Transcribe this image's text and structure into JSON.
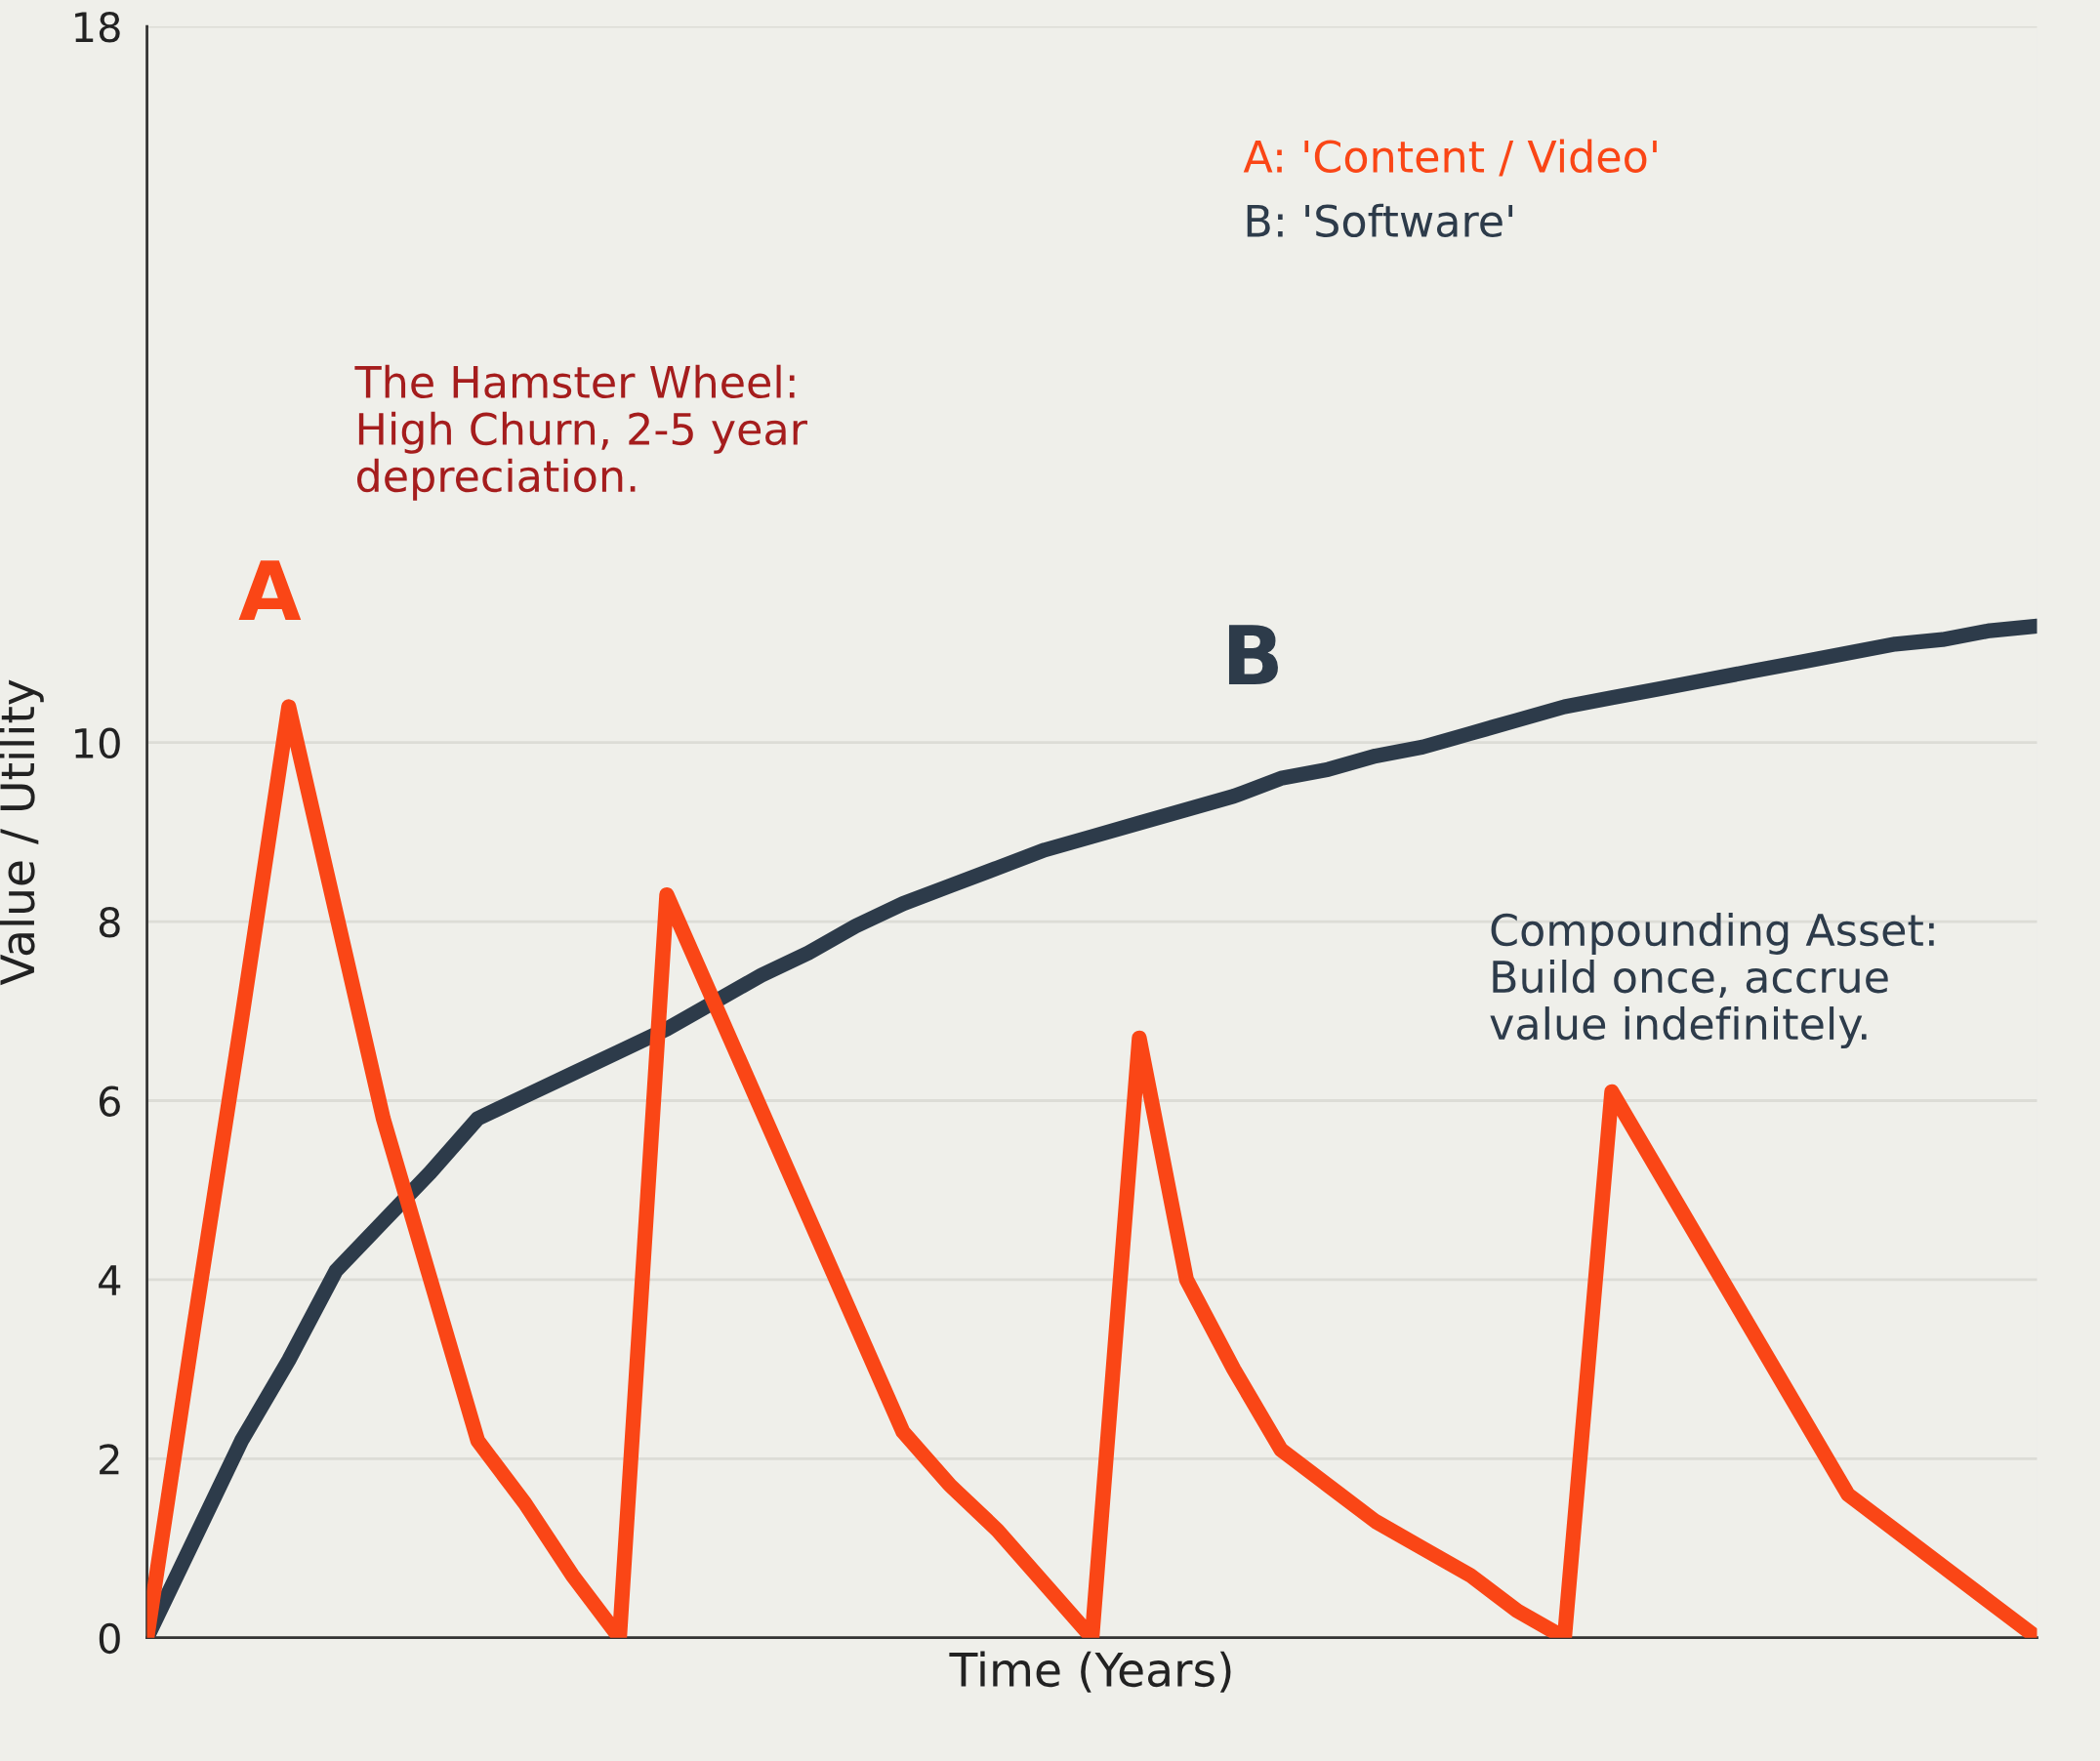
{
  "chart_data": {
    "type": "line",
    "xlabel": "Time (Years)",
    "ylabel": "Value / Utility",
    "categories": [
      null,
      null,
      null,
      null,
      null,
      null,
      null,
      null,
      null,
      null,
      null,
      null,
      null,
      null,
      null,
      null,
      null,
      null,
      null,
      null,
      null,
      null,
      null,
      null,
      null,
      null,
      null,
      null,
      null,
      null,
      null,
      null,
      null,
      null,
      null,
      null,
      null,
      null,
      null,
      null,
      null
    ],
    "ylim": [
      0,
      18
    ],
    "yticks": [
      0,
      2,
      4,
      6,
      8,
      10,
      18
    ],
    "grid": "y",
    "tick_labels": "y",
    "marker": "none",
    "line_style": "solid",
    "series": [
      {
        "name": "A: 'Content / Video'",
        "color": "#fa4616",
        "values": [
          0,
          3.5,
          6.9,
          10.4,
          8.1,
          5.8,
          4.0,
          2.2,
          1.5,
          0.7,
          0,
          8.3,
          7.1,
          5.9,
          4.7,
          3.5,
          2.3,
          1.7,
          1.2,
          0.6,
          0,
          6.7,
          4.0,
          3.0,
          2.1,
          1.7,
          1.3,
          1.0,
          0.7,
          0.3,
          0,
          6.1,
          5.2,
          4.3,
          3.4,
          2.5,
          1.6,
          1.2,
          0.8,
          0.4,
          0
        ]
      },
      {
        "name": "B: 'Software'",
        "color": "#2d3b4a",
        "values": [
          0,
          1.1,
          2.2,
          3.1,
          4.1,
          4.65,
          5.2,
          5.8,
          6.05,
          6.3,
          6.55,
          6.8,
          7.1,
          7.4,
          7.65,
          7.95,
          8.2,
          8.4,
          8.6,
          8.8,
          8.95,
          9.1,
          9.25,
          9.4,
          9.6,
          9.7,
          9.85,
          9.95,
          10.1,
          10.25,
          10.4,
          10.5,
          10.6,
          10.7,
          10.8,
          10.9,
          11.0,
          11.1,
          11.15,
          11.25,
          11.3
        ]
      }
    ],
    "annotations": [
      "A",
      "B",
      "The Hamster Wheel:\nHigh Churn, 2-5 year\ndepreciation.",
      "Compounding Asset:\nBuild once, accrue\nvalue indefinitely."
    ]
  }
}
